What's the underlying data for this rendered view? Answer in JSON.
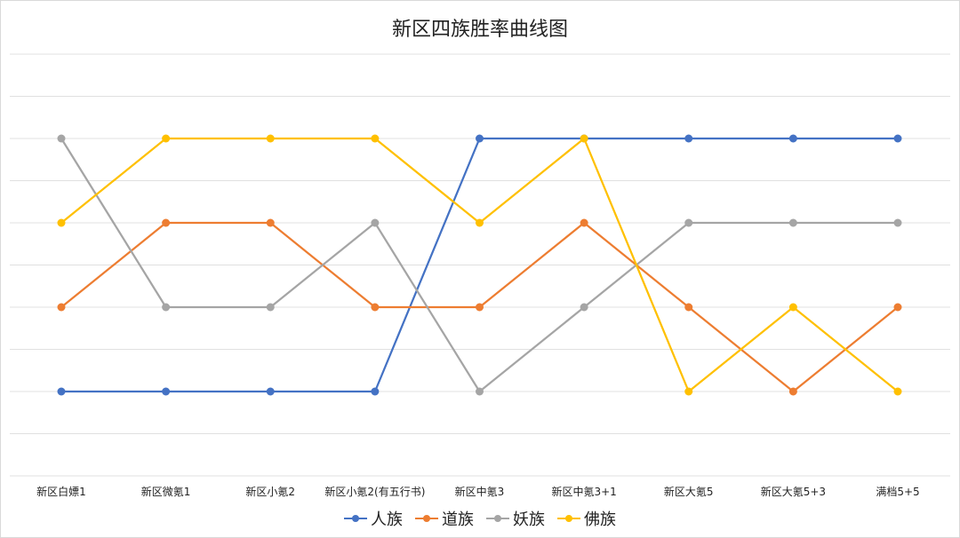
{
  "chart_data": {
    "type": "line",
    "title": "新区四族胜率曲线图",
    "categories": [
      "新区白嫖1",
      "新区微氪1",
      "新区小氪2",
      "新区小氪2(有五行书)",
      "新区中氪3",
      "新区中氪3+1",
      "新区大氪5",
      "新区大氪5+3",
      "满档5+5"
    ],
    "ylim": [
      0,
      5
    ],
    "y_axis_labels_shown": false,
    "grid": true,
    "legend_position": "bottom",
    "series": [
      {
        "name": "人族",
        "color": "#4472C4",
        "values": [
          1,
          1,
          1,
          1,
          4,
          4,
          4,
          4,
          4
        ]
      },
      {
        "name": "道族",
        "color": "#ED7D31",
        "values": [
          2,
          3,
          3,
          2,
          2,
          3,
          2,
          1,
          2
        ]
      },
      {
        "name": "妖族",
        "color": "#A5A5A5",
        "values": [
          4,
          2,
          2,
          3,
          1,
          2,
          3,
          3,
          3
        ]
      },
      {
        "name": "佛族",
        "color": "#FFC000",
        "values": [
          3,
          4,
          4,
          4,
          3,
          4,
          1,
          2,
          1
        ]
      }
    ]
  }
}
